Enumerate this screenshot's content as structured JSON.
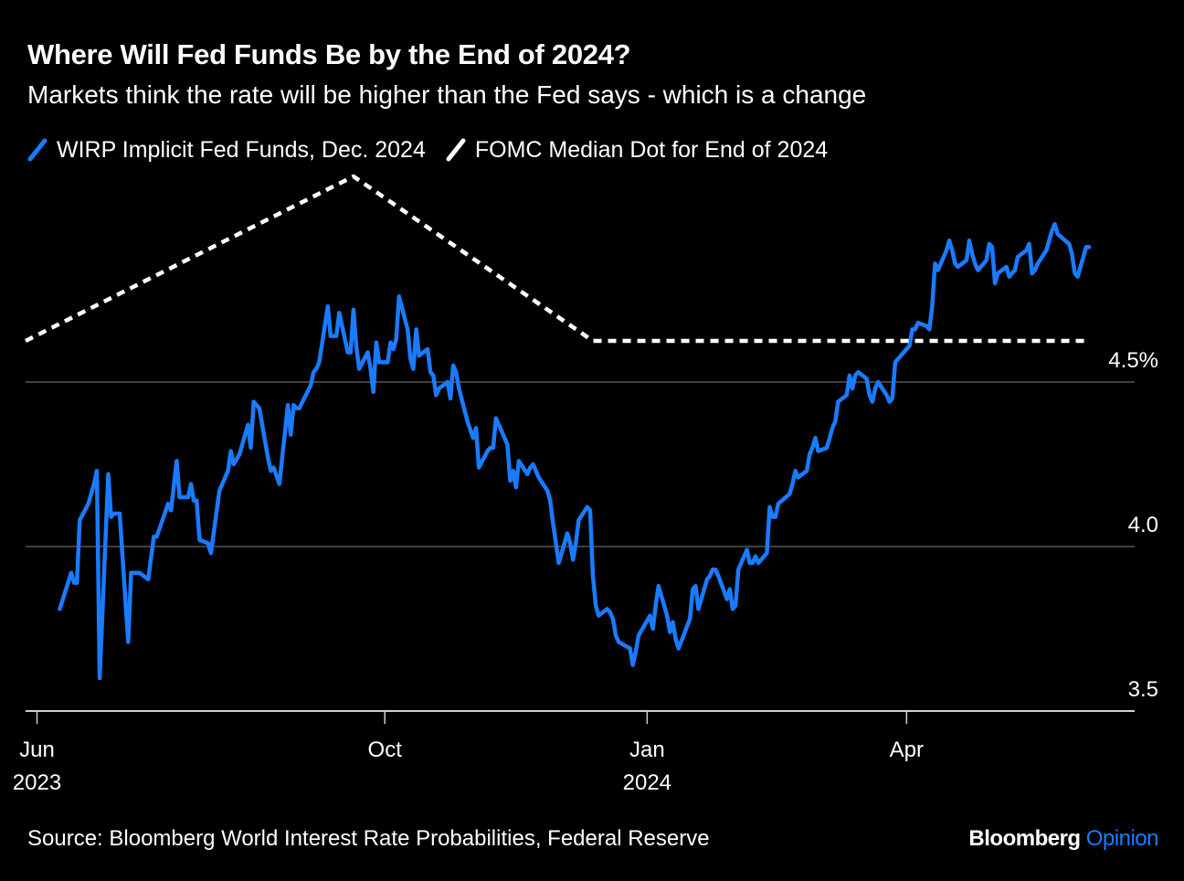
{
  "title": "Where Will Fed Funds Be by the End of 2024?",
  "subtitle": "Markets think the rate will be higher than the Fed says - which is a change",
  "source": "Source: Bloomberg World Interest Rate Probabilities, Federal Reserve",
  "brand": {
    "name": "Bloomberg",
    "suffix": "Opinion"
  },
  "colors": {
    "background": "#000000",
    "wirp": "#1a7bff",
    "fomc": "#ffffff",
    "grid": "#555555"
  },
  "chart_data": {
    "type": "line",
    "title": "Where Will Fed Funds Be by the End of 2024?",
    "subtitle": "Markets think the rate will be higher than the Fed says - which is a change",
    "xlabel": "",
    "ylabel": "",
    "ylim": [
      3.5,
      5.2
    ],
    "y_ticks": [
      {
        "value": 3.5,
        "label": "3.5"
      },
      {
        "value": 4.0,
        "label": "4.0"
      },
      {
        "value": 4.5,
        "label": "4.5%"
      }
    ],
    "x_range": [
      "2023-05-28",
      "2024-06-20"
    ],
    "x_ticks": [
      {
        "date": "2023-06-01",
        "label": "Jun",
        "sublabel": "2023"
      },
      {
        "date": "2023-10-01",
        "label": "Oct",
        "sublabel": ""
      },
      {
        "date": "2024-01-01",
        "label": "Jan",
        "sublabel": "2024"
      },
      {
        "date": "2024-04-01",
        "label": "Apr",
        "sublabel": ""
      }
    ],
    "grid": true,
    "legend_position": "top-left",
    "series": [
      {
        "name": "WIRP Implicit Fed Funds, Dec. 2024",
        "style": "solid",
        "color": "#1a7bff",
        "points": [
          [
            "2023-06-09",
            3.81
          ],
          [
            "2023-06-13",
            3.92
          ],
          [
            "2023-06-14",
            3.89
          ],
          [
            "2023-06-15",
            3.89
          ],
          [
            "2023-06-16",
            4.08
          ],
          [
            "2023-06-19",
            4.13
          ],
          [
            "2023-06-21",
            4.19
          ],
          [
            "2023-06-22",
            4.23
          ],
          [
            "2023-06-23",
            3.6
          ],
          [
            "2023-06-26",
            4.22
          ],
          [
            "2023-06-27",
            4.09
          ],
          [
            "2023-06-28",
            4.1
          ],
          [
            "2023-06-30",
            4.1
          ],
          [
            "2023-07-03",
            3.71
          ],
          [
            "2023-07-04",
            3.92
          ],
          [
            "2023-07-06",
            3.92
          ],
          [
            "2023-07-07",
            3.92
          ],
          [
            "2023-07-10",
            3.9
          ],
          [
            "2023-07-12",
            4.03
          ],
          [
            "2023-07-13",
            4.03
          ],
          [
            "2023-07-17",
            4.13
          ],
          [
            "2023-07-18",
            4.11
          ],
          [
            "2023-07-20",
            4.26
          ],
          [
            "2023-07-21",
            4.15
          ],
          [
            "2023-07-24",
            4.15
          ],
          [
            "2023-07-25",
            4.19
          ],
          [
            "2023-07-26",
            4.14
          ],
          [
            "2023-07-27",
            4.14
          ],
          [
            "2023-07-28",
            4.02
          ],
          [
            "2023-07-31",
            4.01
          ],
          [
            "2023-08-01",
            3.98
          ],
          [
            "2023-08-04",
            4.17
          ],
          [
            "2023-08-07",
            4.23
          ],
          [
            "2023-08-08",
            4.29
          ],
          [
            "2023-08-09",
            4.25
          ],
          [
            "2023-08-11",
            4.28
          ],
          [
            "2023-08-14",
            4.37
          ],
          [
            "2023-08-15",
            4.3
          ],
          [
            "2023-08-16",
            4.44
          ],
          [
            "2023-08-17",
            4.43
          ],
          [
            "2023-08-18",
            4.42
          ],
          [
            "2023-08-21",
            4.27
          ],
          [
            "2023-08-22",
            4.23
          ],
          [
            "2023-08-23",
            4.24
          ],
          [
            "2023-08-25",
            4.19
          ],
          [
            "2023-08-28",
            4.43
          ],
          [
            "2023-08-29",
            4.34
          ],
          [
            "2023-08-30",
            4.43
          ],
          [
            "2023-08-31",
            4.42
          ],
          [
            "2023-09-01",
            4.42
          ],
          [
            "2023-09-05",
            4.49
          ],
          [
            "2023-09-06",
            4.53
          ],
          [
            "2023-09-07",
            4.54
          ],
          [
            "2023-09-08",
            4.56
          ],
          [
            "2023-09-11",
            4.73
          ],
          [
            "2023-09-12",
            4.64
          ],
          [
            "2023-09-13",
            4.64
          ],
          [
            "2023-09-14",
            4.64
          ],
          [
            "2023-09-15",
            4.71
          ],
          [
            "2023-09-18",
            4.59
          ],
          [
            "2023-09-19",
            4.59
          ],
          [
            "2023-09-20",
            4.72
          ],
          [
            "2023-09-21",
            4.61
          ],
          [
            "2023-09-22",
            4.54
          ],
          [
            "2023-09-25",
            4.59
          ],
          [
            "2023-09-26",
            4.54
          ],
          [
            "2023-09-27",
            4.47
          ],
          [
            "2023-09-28",
            4.62
          ],
          [
            "2023-09-29",
            4.56
          ],
          [
            "2023-10-02",
            4.56
          ],
          [
            "2023-10-03",
            4.62
          ],
          [
            "2023-10-04",
            4.6
          ],
          [
            "2023-10-05",
            4.63
          ],
          [
            "2023-10-06",
            4.76
          ],
          [
            "2023-10-09",
            4.66
          ],
          [
            "2023-10-10",
            4.57
          ],
          [
            "2023-10-11",
            4.54
          ],
          [
            "2023-10-12",
            4.66
          ],
          [
            "2023-10-13",
            4.58
          ],
          [
            "2023-10-16",
            4.6
          ],
          [
            "2023-10-17",
            4.53
          ],
          [
            "2023-10-18",
            4.52
          ],
          [
            "2023-10-19",
            4.46
          ],
          [
            "2023-10-20",
            4.48
          ],
          [
            "2023-10-23",
            4.5
          ],
          [
            "2023-10-24",
            4.45
          ],
          [
            "2023-10-25",
            4.55
          ],
          [
            "2023-10-26",
            4.53
          ],
          [
            "2023-10-27",
            4.48
          ],
          [
            "2023-10-30",
            4.38
          ],
          [
            "2023-11-01",
            4.33
          ],
          [
            "2023-11-02",
            4.36
          ],
          [
            "2023-11-03",
            4.24
          ],
          [
            "2023-11-06",
            4.29
          ],
          [
            "2023-11-07",
            4.3
          ],
          [
            "2023-11-08",
            4.3
          ],
          [
            "2023-11-09",
            4.39
          ],
          [
            "2023-11-13",
            4.31
          ],
          [
            "2023-11-14",
            4.2
          ],
          [
            "2023-11-15",
            4.23
          ],
          [
            "2023-11-16",
            4.18
          ],
          [
            "2023-11-17",
            4.26
          ],
          [
            "2023-11-20",
            4.22
          ],
          [
            "2023-11-21",
            4.24
          ],
          [
            "2023-11-22",
            4.25
          ],
          [
            "2023-11-24",
            4.21
          ],
          [
            "2023-11-27",
            4.17
          ],
          [
            "2023-11-28",
            4.14
          ],
          [
            "2023-11-29",
            4.07
          ],
          [
            "2023-12-01",
            3.95
          ],
          [
            "2023-12-04",
            4.04
          ],
          [
            "2023-12-05",
            4.01
          ],
          [
            "2023-12-06",
            3.96
          ],
          [
            "2023-12-07",
            4.01
          ],
          [
            "2023-12-08",
            4.08
          ],
          [
            "2023-12-11",
            4.12
          ],
          [
            "2023-12-12",
            4.11
          ],
          [
            "2023-12-13",
            3.91
          ],
          [
            "2023-12-14",
            3.82
          ],
          [
            "2023-12-15",
            3.79
          ],
          [
            "2023-12-18",
            3.81
          ],
          [
            "2023-12-19",
            3.8
          ],
          [
            "2023-12-20",
            3.78
          ],
          [
            "2023-12-21",
            3.73
          ],
          [
            "2023-12-22",
            3.71
          ],
          [
            "2023-12-26",
            3.69
          ],
          [
            "2023-12-27",
            3.64
          ],
          [
            "2023-12-28",
            3.68
          ],
          [
            "2023-12-29",
            3.73
          ],
          [
            "2024-01-02",
            3.79
          ],
          [
            "2024-01-03",
            3.75
          ],
          [
            "2024-01-04",
            3.82
          ],
          [
            "2024-01-05",
            3.88
          ],
          [
            "2024-01-08",
            3.79
          ],
          [
            "2024-01-09",
            3.74
          ],
          [
            "2024-01-10",
            3.77
          ],
          [
            "2024-01-11",
            3.72
          ],
          [
            "2024-01-12",
            3.69
          ],
          [
            "2024-01-16",
            3.78
          ],
          [
            "2024-01-17",
            3.87
          ],
          [
            "2024-01-18",
            3.88
          ],
          [
            "2024-01-19",
            3.81
          ],
          [
            "2024-01-22",
            3.9
          ],
          [
            "2024-01-23",
            3.91
          ],
          [
            "2024-01-24",
            3.93
          ],
          [
            "2024-01-25",
            3.93
          ],
          [
            "2024-01-26",
            3.91
          ],
          [
            "2024-01-29",
            3.84
          ],
          [
            "2024-01-30",
            3.87
          ],
          [
            "2024-01-31",
            3.81
          ],
          [
            "2024-02-01",
            3.82
          ],
          [
            "2024-02-02",
            3.93
          ],
          [
            "2024-02-05",
            3.99
          ],
          [
            "2024-02-06",
            3.95
          ],
          [
            "2024-02-07",
            3.95
          ],
          [
            "2024-02-08",
            3.97
          ],
          [
            "2024-02-09",
            3.95
          ],
          [
            "2024-02-12",
            3.98
          ],
          [
            "2024-02-13",
            4.12
          ],
          [
            "2024-02-14",
            4.09
          ],
          [
            "2024-02-15",
            4.09
          ],
          [
            "2024-02-16",
            4.13
          ],
          [
            "2024-02-20",
            4.16
          ],
          [
            "2024-02-21",
            4.19
          ],
          [
            "2024-02-22",
            4.23
          ],
          [
            "2024-02-23",
            4.21
          ],
          [
            "2024-02-26",
            4.23
          ],
          [
            "2024-02-27",
            4.28
          ],
          [
            "2024-02-28",
            4.3
          ],
          [
            "2024-02-29",
            4.33
          ],
          [
            "2024-03-01",
            4.29
          ],
          [
            "2024-03-04",
            4.3
          ],
          [
            "2024-03-05",
            4.33
          ],
          [
            "2024-03-06",
            4.36
          ],
          [
            "2024-03-07",
            4.38
          ],
          [
            "2024-03-08",
            4.44
          ],
          [
            "2024-03-11",
            4.46
          ],
          [
            "2024-03-12",
            4.52
          ],
          [
            "2024-03-13",
            4.48
          ],
          [
            "2024-03-14",
            4.52
          ],
          [
            "2024-03-15",
            4.53
          ],
          [
            "2024-03-18",
            4.51
          ],
          [
            "2024-03-19",
            4.46
          ],
          [
            "2024-03-20",
            4.44
          ],
          [
            "2024-03-21",
            4.48
          ],
          [
            "2024-03-22",
            4.5
          ],
          [
            "2024-03-25",
            4.46
          ],
          [
            "2024-03-26",
            4.44
          ],
          [
            "2024-03-27",
            4.45
          ],
          [
            "2024-03-28",
            4.56
          ],
          [
            "2024-04-01",
            4.6
          ],
          [
            "2024-04-02",
            4.61
          ],
          [
            "2024-04-03",
            4.66
          ],
          [
            "2024-04-04",
            4.66
          ],
          [
            "2024-04-05",
            4.68
          ],
          [
            "2024-04-08",
            4.67
          ],
          [
            "2024-04-09",
            4.66
          ],
          [
            "2024-04-10",
            4.73
          ],
          [
            "2024-04-11",
            4.86
          ],
          [
            "2024-04-12",
            4.84
          ],
          [
            "2024-04-15",
            4.9
          ],
          [
            "2024-04-16",
            4.93
          ],
          [
            "2024-04-17",
            4.9
          ],
          [
            "2024-04-18",
            4.86
          ],
          [
            "2024-04-19",
            4.85
          ],
          [
            "2024-04-22",
            4.87
          ],
          [
            "2024-04-23",
            4.93
          ],
          [
            "2024-04-24",
            4.89
          ],
          [
            "2024-04-25",
            4.86
          ],
          [
            "2024-04-26",
            4.84
          ],
          [
            "2024-04-29",
            4.87
          ],
          [
            "2024-04-30",
            4.92
          ],
          [
            "2024-05-01",
            4.91
          ],
          [
            "2024-05-02",
            4.8
          ],
          [
            "2024-05-03",
            4.83
          ],
          [
            "2024-05-06",
            4.85
          ],
          [
            "2024-05-07",
            4.82
          ],
          [
            "2024-05-08",
            4.83
          ],
          [
            "2024-05-09",
            4.84
          ],
          [
            "2024-05-10",
            4.88
          ],
          [
            "2024-05-13",
            4.9
          ],
          [
            "2024-05-14",
            4.92
          ],
          [
            "2024-05-15",
            4.83
          ],
          [
            "2024-05-16",
            4.84
          ],
          [
            "2024-05-17",
            4.86
          ],
          [
            "2024-05-20",
            4.9
          ],
          [
            "2024-05-21",
            4.93
          ],
          [
            "2024-05-22",
            4.96
          ],
          [
            "2024-05-23",
            4.98
          ],
          [
            "2024-05-24",
            4.95
          ],
          [
            "2024-05-28",
            4.92
          ],
          [
            "2024-05-29",
            4.89
          ],
          [
            "2024-05-30",
            4.83
          ],
          [
            "2024-05-31",
            4.82
          ],
          [
            "2024-06-03",
            4.91
          ],
          [
            "2024-06-04",
            4.91
          ]
        ]
      },
      {
        "name": "FOMC Median Dot for End of 2024",
        "style": "dashed",
        "color": "#ffffff",
        "points": [
          [
            "2023-05-28",
            4.625
          ],
          [
            "2023-09-20",
            5.125
          ],
          [
            "2023-12-13",
            4.625
          ],
          [
            "2024-06-04",
            4.625
          ]
        ]
      }
    ]
  }
}
